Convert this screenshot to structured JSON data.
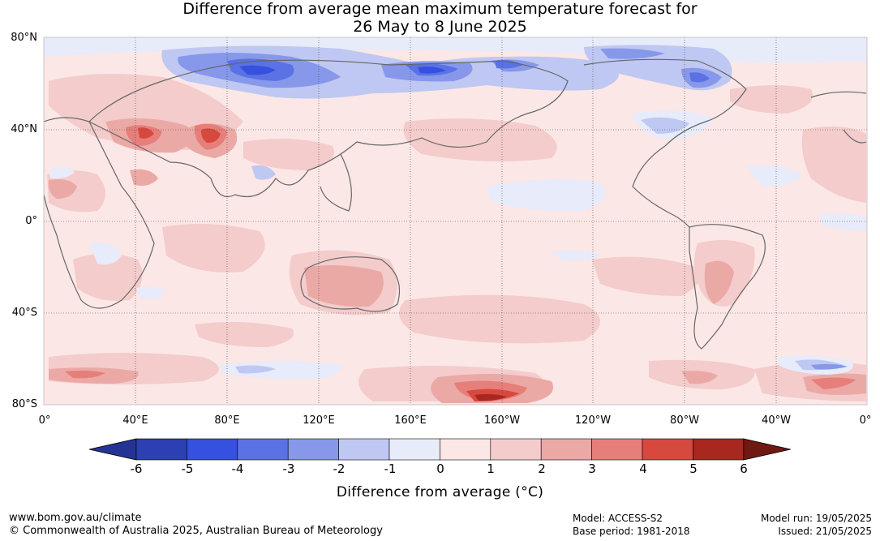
{
  "title": {
    "line1": "Difference from average mean maximum temperature forecast for",
    "line2": "26 May to 8 June 2025"
  },
  "map": {
    "lat_labels": [
      "80°N",
      "40°N",
      "0°",
      "40°S",
      "80°S"
    ],
    "lon_labels": [
      "0°",
      "40°E",
      "80°E",
      "120°E",
      "160°E",
      "160°W",
      "120°W",
      "80°W",
      "40°W",
      "0°"
    ],
    "lat_values": [
      80,
      40,
      0,
      -40,
      -80
    ],
    "lon_values": [
      0,
      40,
      80,
      120,
      160,
      200,
      240,
      280,
      320,
      360
    ]
  },
  "colorbar": {
    "ticks": [
      "-6",
      "-5",
      "-4",
      "-3",
      "-2",
      "-1",
      "0",
      "1",
      "2",
      "3",
      "4",
      "5",
      "6"
    ],
    "colors": [
      "#253494",
      "#2c40b4",
      "#3650e0",
      "#5a72e4",
      "#8798ea",
      "#bfc8f2",
      "#e7ebfa",
      "#fbe7e6",
      "#f3cccb",
      "#eba9a6",
      "#e67f7a",
      "#d7493f",
      "#a8281f",
      "#6e1912"
    ],
    "label": "Difference from average (°C)"
  },
  "footer": {
    "url": "www.bom.gov.au/climate",
    "copyright": "© Commonwealth of Australia 2025, Australian Bureau of Meteorology",
    "model": "Model: ACCESS-S2",
    "base_period": "Base period: 1981-2018",
    "model_run": "Model run: 19/05/2025",
    "issued": "Issued: 21/05/2025"
  }
}
